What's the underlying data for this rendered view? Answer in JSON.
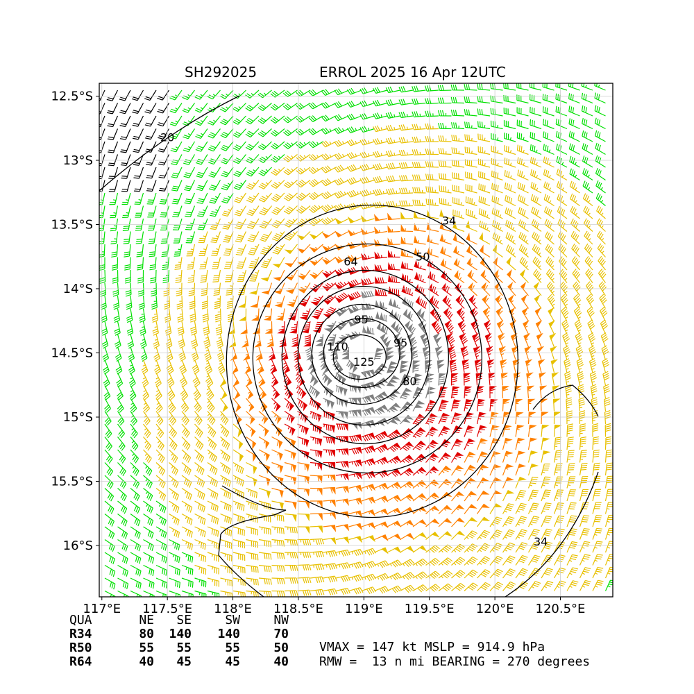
{
  "title": {
    "left": "SH292025",
    "right": "ERROL 2025 16 Apr 12UTC"
  },
  "chart_data": {
    "type": "wind-barb-map",
    "lon_range": [
      116.98,
      120.9
    ],
    "lat_range": [
      -16.4,
      -12.4
    ],
    "x_ticks": [
      {
        "v": 117.0,
        "label": "117°E"
      },
      {
        "v": 117.5,
        "label": "117.5°E"
      },
      {
        "v": 118.0,
        "label": "118°E"
      },
      {
        "v": 118.5,
        "label": "118.5°E"
      },
      {
        "v": 119.0,
        "label": "119°E"
      },
      {
        "v": 119.5,
        "label": "119.5°E"
      },
      {
        "v": 120.0,
        "label": "120°E"
      },
      {
        "v": 120.5,
        "label": "120.5°E"
      }
    ],
    "y_ticks": [
      {
        "v": -12.5,
        "label": "12.5°S"
      },
      {
        "v": -13.0,
        "label": "13°S"
      },
      {
        "v": -13.5,
        "label": "13.5°S"
      },
      {
        "v": -14.0,
        "label": "14°S"
      },
      {
        "v": -14.5,
        "label": "14.5°S"
      },
      {
        "v": -15.0,
        "label": "15°S"
      },
      {
        "v": -15.5,
        "label": "15.5°S"
      },
      {
        "v": -16.0,
        "label": "16°S"
      }
    ],
    "grid": true,
    "center": {
      "lon": 119.0,
      "lat": -14.5
    },
    "contours": [
      {
        "level": "20",
        "label_lon": 117.5,
        "label_lat": -12.85
      },
      {
        "level": "34",
        "label_lon": 119.65,
        "label_lat": -13.5
      },
      {
        "level": "34",
        "label_lon": 120.35,
        "label_lat": -16.0
      },
      {
        "level": "50",
        "label_lon": 119.45,
        "label_lat": -13.78
      },
      {
        "level": "64",
        "label_lon": 118.9,
        "label_lat": -13.82
      },
      {
        "level": "80",
        "label_lon": 119.35,
        "label_lat": -14.75
      },
      {
        "level": "95",
        "label_lon": 118.98,
        "label_lat": -14.27
      },
      {
        "level": "95",
        "label_lon": 119.28,
        "label_lat": -14.45
      },
      {
        "level": "110",
        "label_lon": 118.8,
        "label_lat": -14.48
      },
      {
        "level": "125",
        "label_lon": 119.0,
        "label_lat": -14.6
      }
    ],
    "barb_colors": {
      "lt20": "#000000",
      "20to34": "#00e000",
      "34to50": "#e8c000",
      "50to64": "#ff8000",
      "64to95": "#e00000",
      "ge95": "#808080"
    }
  },
  "table": {
    "header": [
      "QUA",
      "NE",
      "SE",
      "SW",
      "NW"
    ],
    "rows": [
      [
        "R34",
        "80",
        "140",
        "140",
        "70"
      ],
      [
        "R50",
        "55",
        "55",
        "55",
        "50"
      ],
      [
        "R64",
        "40",
        "45",
        "45",
        "40"
      ]
    ]
  },
  "info": {
    "line1": "VMAX = 147 kt MSLP = 914.9 hPa",
    "line2": "RMW =  13 n mi BEARING = 270 degrees"
  }
}
